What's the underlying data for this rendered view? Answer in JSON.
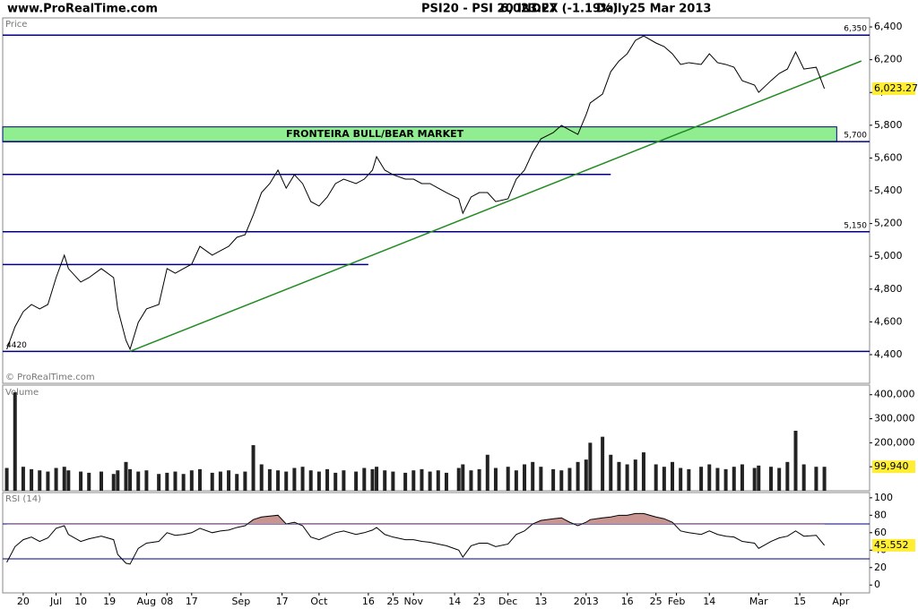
{
  "header": {
    "site": "www.ProRealTime.com",
    "title": "PSI20 - PSI 20 INDEX",
    "quote": "6,023.27 (-1.19%)",
    "period": "Daily",
    "date": "25 Mar 2013"
  },
  "chart_data": [
    {
      "type": "line",
      "panel": "Price",
      "footer": "© ProRealTime.com",
      "xlim": [
        -1,
        210
      ],
      "ylim": [
        4225,
        6455
      ],
      "yticks": [
        {
          "value": 4400,
          "label": "4,400"
        },
        {
          "value": 4600,
          "label": "4,600"
        },
        {
          "value": 4800,
          "label": "4,800"
        },
        {
          "value": 5000,
          "label": "5,000"
        },
        {
          "value": 5200,
          "label": "5,200"
        },
        {
          "value": 5400,
          "label": "5,400"
        },
        {
          "value": 5600,
          "label": "5,600"
        },
        {
          "value": 5800,
          "label": "5,800"
        },
        {
          "value": 6000,
          "label": "6,000"
        },
        {
          "value": 6200,
          "label": "6,200"
        },
        {
          "value": 6400,
          "label": "6,400"
        }
      ],
      "x": [
        0,
        2,
        4,
        6,
        8,
        10,
        12,
        14,
        15,
        18,
        20,
        23,
        26,
        27,
        29,
        30,
        32,
        34,
        37,
        39,
        41,
        43,
        45,
        47,
        50,
        52,
        54,
        56,
        58,
        60,
        62,
        64,
        66,
        68,
        70,
        72,
        74,
        76,
        78,
        80,
        82,
        85,
        87,
        89,
        90,
        92,
        94,
        97,
        99,
        101,
        103,
        105,
        107,
        110,
        111,
        113,
        115,
        117,
        119,
        122,
        124,
        126,
        128,
        130,
        133,
        135,
        137,
        139,
        141,
        142,
        145,
        147,
        149,
        151,
        153,
        155,
        158,
        160,
        162,
        164,
        166,
        169,
        171,
        173,
        175,
        177,
        179,
        182,
        183,
        186,
        188,
        190,
        192,
        194,
        197,
        199
      ],
      "series": [
        {
          "name": "PSI20",
          "color": "#000000",
          "values": [
            4433,
            4570,
            4662,
            4706,
            4679,
            4706,
            4870,
            5007,
            4925,
            4843,
            4870,
            4925,
            4870,
            4679,
            4488,
            4433,
            4597,
            4679,
            4706,
            4925,
            4897,
            4925,
            4952,
            5061,
            5007,
            5034,
            5061,
            5116,
            5132,
            5253,
            5389,
            5444,
            5526,
            5416,
            5498,
            5444,
            5334,
            5307,
            5362,
            5444,
            5471,
            5444,
            5471,
            5526,
            5608,
            5526,
            5498,
            5471,
            5471,
            5444,
            5444,
            5416,
            5389,
            5351,
            5263,
            5362,
            5389,
            5389,
            5334,
            5351,
            5471,
            5526,
            5635,
            5717,
            5755,
            5799,
            5771,
            5744,
            5864,
            5936,
            5990,
            6127,
            6192,
            6236,
            6318,
            6345,
            6302,
            6280,
            6236,
            6171,
            6182,
            6171,
            6236,
            6182,
            6171,
            6154,
            6072,
            6045,
            6001,
            6072,
            6116,
            6143,
            6247,
            6143,
            6154,
            6023.27
          ]
        }
      ],
      "last_label": "6,023.27",
      "levels": [
        {
          "value": 6350,
          "label": "6,350"
        },
        {
          "value": 5700,
          "label": "5,700"
        },
        {
          "value": 5500,
          "end": 147
        },
        {
          "value": 5150,
          "label": "5,150"
        },
        {
          "value": 4950,
          "end": 88
        },
        {
          "value": 4420,
          "label": "4420"
        }
      ],
      "level_color": "#000080",
      "band": {
        "from": 5700,
        "to": 5790,
        "end": 202,
        "label": "FRONTEIRA BULL/BEAR MARKET",
        "color": "#90ee90"
      },
      "trendline": {
        "x": [
          30,
          208
        ],
        "values": [
          4420,
          6192
        ],
        "color": "#228b22"
      }
    },
    {
      "type": "bar",
      "panel": "Volume",
      "xlim": [
        -1,
        210
      ],
      "ylim": [
        0,
        440000
      ],
      "yticks": [
        {
          "value": 100000,
          "label": "100,000"
        },
        {
          "value": 200000,
          "label": "200,000"
        },
        {
          "value": 300000,
          "label": "300,000"
        },
        {
          "value": 400000,
          "label": "400,000"
        }
      ],
      "x": [
        0,
        2,
        4,
        6,
        8,
        10,
        12,
        14,
        15,
        18,
        20,
        23,
        26,
        27,
        29,
        30,
        32,
        34,
        37,
        39,
        41,
        43,
        45,
        47,
        50,
        52,
        54,
        56,
        58,
        60,
        62,
        64,
        66,
        68,
        70,
        72,
        74,
        76,
        78,
        80,
        82,
        85,
        87,
        89,
        90,
        92,
        94,
        97,
        99,
        101,
        103,
        105,
        107,
        110,
        111,
        113,
        115,
        117,
        119,
        122,
        124,
        126,
        128,
        130,
        133,
        135,
        137,
        139,
        141,
        142,
        145,
        147,
        149,
        151,
        153,
        155,
        158,
        160,
        162,
        164,
        166,
        169,
        171,
        173,
        175,
        177,
        179,
        182,
        183,
        186,
        188,
        190,
        192,
        194,
        197,
        199
      ],
      "color": "#222222",
      "values": [
        95000,
        410000,
        100000,
        90000,
        85000,
        80000,
        95000,
        100000,
        85000,
        80000,
        75000,
        80000,
        70000,
        85000,
        120000,
        90000,
        80000,
        85000,
        70000,
        75000,
        80000,
        70000,
        85000,
        90000,
        75000,
        80000,
        85000,
        70000,
        80000,
        190000,
        110000,
        90000,
        85000,
        80000,
        95000,
        100000,
        85000,
        80000,
        90000,
        75000,
        85000,
        80000,
        95000,
        90000,
        100000,
        85000,
        80000,
        75000,
        85000,
        90000,
        80000,
        85000,
        75000,
        95000,
        110000,
        85000,
        90000,
        150000,
        95000,
        100000,
        85000,
        110000,
        120000,
        100000,
        90000,
        85000,
        95000,
        120000,
        130000,
        200000,
        225000,
        150000,
        120000,
        110000,
        130000,
        160000,
        110000,
        100000,
        120000,
        95000,
        90000,
        100000,
        110000,
        95000,
        90000,
        100000,
        110000,
        95000,
        105000,
        100000,
        95000,
        120000,
        250000,
        110000,
        100000,
        99940
      ],
      "last_label": "99,940"
    },
    {
      "type": "line",
      "panel": "RSI (14)",
      "xlim": [
        -1,
        210
      ],
      "ylim": [
        -9,
        106
      ],
      "yticks": [
        0,
        20,
        40,
        60,
        80,
        100
      ],
      "xticks": [
        {
          "value": 4,
          "label": "20"
        },
        {
          "value": 12,
          "label": "Jul"
        },
        {
          "value": 18,
          "label": "10"
        },
        {
          "value": 25,
          "label": "19"
        },
        {
          "value": 34,
          "label": "Aug"
        },
        {
          "value": 39,
          "label": "08"
        },
        {
          "value": 45,
          "label": "17"
        },
        {
          "value": 57,
          "label": "Sep"
        },
        {
          "value": 67,
          "label": "17"
        },
        {
          "value": 76,
          "label": "Oct"
        },
        {
          "value": 88,
          "label": "16"
        },
        {
          "value": 94,
          "label": "25"
        },
        {
          "value": 99,
          "label": "Nov"
        },
        {
          "value": 109,
          "label": "14"
        },
        {
          "value": 115,
          "label": "23"
        },
        {
          "value": 122,
          "label": "Dec"
        },
        {
          "value": 130,
          "label": "13"
        },
        {
          "value": 141,
          "label": "2013"
        },
        {
          "value": 151,
          "label": "16"
        },
        {
          "value": 158,
          "label": "25"
        },
        {
          "value": 163,
          "label": "Feb"
        },
        {
          "value": 171,
          "label": "14"
        },
        {
          "value": 183,
          "label": "Mar"
        },
        {
          "value": 193,
          "label": "15"
        },
        {
          "value": 203,
          "label": "Apr"
        }
      ],
      "x": [
        0,
        2,
        4,
        6,
        8,
        10,
        12,
        14,
        15,
        18,
        20,
        23,
        26,
        27,
        29,
        30,
        32,
        34,
        37,
        39,
        41,
        43,
        45,
        47,
        50,
        52,
        54,
        56,
        58,
        60,
        62,
        64,
        66,
        68,
        70,
        72,
        74,
        76,
        78,
        80,
        82,
        85,
        87,
        89,
        90,
        92,
        94,
        97,
        99,
        101,
        103,
        105,
        107,
        110,
        111,
        113,
        115,
        117,
        119,
        122,
        124,
        126,
        128,
        130,
        133,
        135,
        137,
        139,
        141,
        142,
        145,
        147,
        149,
        151,
        153,
        155,
        158,
        160,
        162,
        164,
        166,
        169,
        171,
        173,
        175,
        177,
        179,
        182,
        183,
        186,
        188,
        190,
        192,
        194,
        197,
        199
      ],
      "series": [
        {
          "name": "RSI",
          "color": "#000000",
          "values": [
            26,
            44,
            52,
            55,
            50,
            54,
            65,
            68,
            58,
            50,
            53,
            56,
            52,
            35,
            25,
            24,
            42,
            48,
            50,
            60,
            57,
            58,
            60,
            65,
            60,
            62,
            63,
            66,
            68,
            75,
            78,
            79,
            80,
            70,
            72,
            68,
            55,
            52,
            56,
            60,
            62,
            58,
            60,
            63,
            66,
            58,
            55,
            52,
            52,
            50,
            49,
            47,
            45,
            40,
            32,
            45,
            48,
            48,
            44,
            47,
            58,
            62,
            70,
            74,
            76,
            77,
            72,
            68,
            72,
            75,
            77,
            78,
            80,
            80,
            82,
            82,
            78,
            76,
            72,
            62,
            60,
            58,
            62,
            58,
            56,
            55,
            50,
            48,
            42,
            50,
            54,
            56,
            62,
            56,
            57,
            45.552
          ]
        }
      ],
      "levels": [
        70,
        30
      ],
      "level_color": "#000080",
      "overbought_color": "#c99590"
    }
  ]
}
